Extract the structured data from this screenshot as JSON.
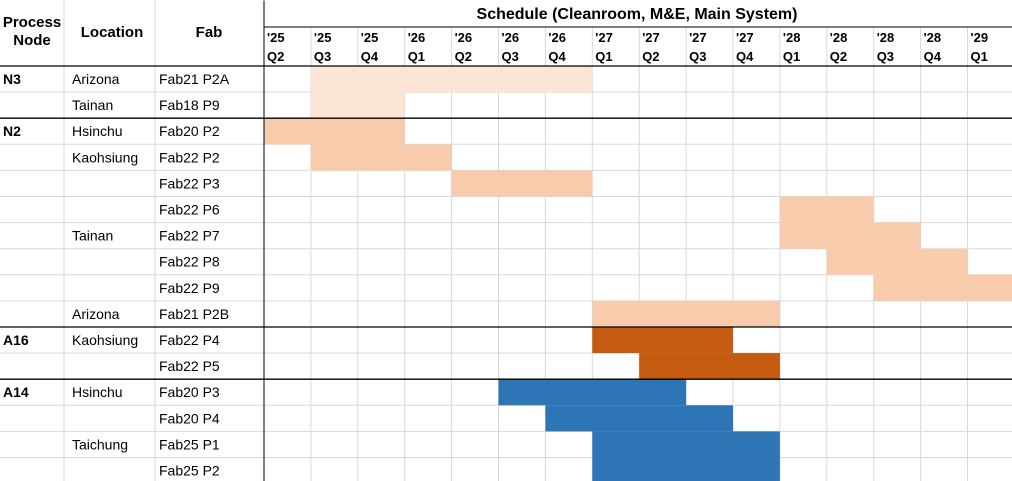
{
  "chart_data": {
    "type": "gantt",
    "title": "Schedule (Cleanroom, M&E, Main System)",
    "columns": {
      "node": "Process\nNode",
      "location": "Location",
      "fab": "Fab"
    },
    "quarters": [
      {
        "year": "'25",
        "q": "Q2"
      },
      {
        "year": "'25",
        "q": "Q3"
      },
      {
        "year": "'25",
        "q": "Q4"
      },
      {
        "year": "'26",
        "q": "Q1"
      },
      {
        "year": "'26",
        "q": "Q2"
      },
      {
        "year": "'26",
        "q": "Q3"
      },
      {
        "year": "'26",
        "q": "Q4"
      },
      {
        "year": "'27",
        "q": "Q1"
      },
      {
        "year": "'27",
        "q": "Q2"
      },
      {
        "year": "'27",
        "q": "Q3"
      },
      {
        "year": "'27",
        "q": "Q4"
      },
      {
        "year": "'28",
        "q": "Q1"
      },
      {
        "year": "'28",
        "q": "Q2"
      },
      {
        "year": "'28",
        "q": "Q3"
      },
      {
        "year": "'28",
        "q": "Q4"
      },
      {
        "year": "'29",
        "q": "Q1"
      }
    ],
    "colors": {
      "N3": "#fce4d6",
      "N2": "#f8cbad",
      "A16": "#c55a11",
      "A14": "#2e75b6",
      "grid": "#d9d9d9",
      "rule": "#000000"
    },
    "rows": [
      {
        "node": "N3",
        "location": "Arizona",
        "fab": "Fab21 P2A",
        "start": "'25 Q3",
        "end": "'26 Q4"
      },
      {
        "node": "",
        "location": "Tainan",
        "fab": "Fab18 P9",
        "start": "'25 Q3",
        "end": "'25 Q4"
      },
      {
        "node": "N2",
        "location": "Hsinchu",
        "fab": "Fab20 P2",
        "start": "'25 Q2",
        "end": "'25 Q4"
      },
      {
        "node": "",
        "location": "Kaohsiung",
        "fab": "Fab22 P2",
        "start": "'25 Q3",
        "end": "'26 Q1"
      },
      {
        "node": "",
        "location": "",
        "fab": "Fab22 P3",
        "start": "'26 Q2",
        "end": "'26 Q4"
      },
      {
        "node": "",
        "location": "",
        "fab": "Fab22 P6",
        "start": "'28 Q1",
        "end": "'28 Q2"
      },
      {
        "node": "",
        "location": "Tainan",
        "fab": "Fab22 P7",
        "start": "'28 Q1",
        "end": "'28 Q3"
      },
      {
        "node": "",
        "location": "",
        "fab": "Fab22 P8",
        "start": "'28 Q2",
        "end": "'28 Q4"
      },
      {
        "node": "",
        "location": "",
        "fab": "Fab22 P9",
        "start": "'28 Q3",
        "end": "'29 Q1"
      },
      {
        "node": "",
        "location": "Arizona",
        "fab": "Fab21 P2B",
        "start": "'27 Q1",
        "end": "'27 Q4"
      },
      {
        "node": "A16",
        "location": "Kaohsiung",
        "fab": "Fab22 P4",
        "start": "'27 Q1",
        "end": "'27 Q3"
      },
      {
        "node": "",
        "location": "",
        "fab": "Fab22 P5",
        "start": "'27 Q2",
        "end": "'27 Q4"
      },
      {
        "node": "A14",
        "location": "Hsinchu",
        "fab": "Fab20 P3",
        "start": "'26 Q3",
        "end": "'27 Q2"
      },
      {
        "node": "",
        "location": "",
        "fab": "Fab20 P4",
        "start": "'26 Q4",
        "end": "'27 Q3"
      },
      {
        "node": "",
        "location": "Taichung",
        "fab": "Fab25 P1",
        "start": "'27 Q1",
        "end": "'27 Q4"
      },
      {
        "node": "",
        "location": "",
        "fab": "Fab25 P2",
        "start": "'27 Q1",
        "end": "'27 Q4"
      }
    ],
    "groups": [
      {
        "node": "N3",
        "first_row": 0,
        "last_row": 1
      },
      {
        "node": "N2",
        "first_row": 2,
        "last_row": 9
      },
      {
        "node": "A16",
        "first_row": 10,
        "last_row": 11
      },
      {
        "node": "A14",
        "first_row": 12,
        "last_row": 15
      }
    ]
  }
}
